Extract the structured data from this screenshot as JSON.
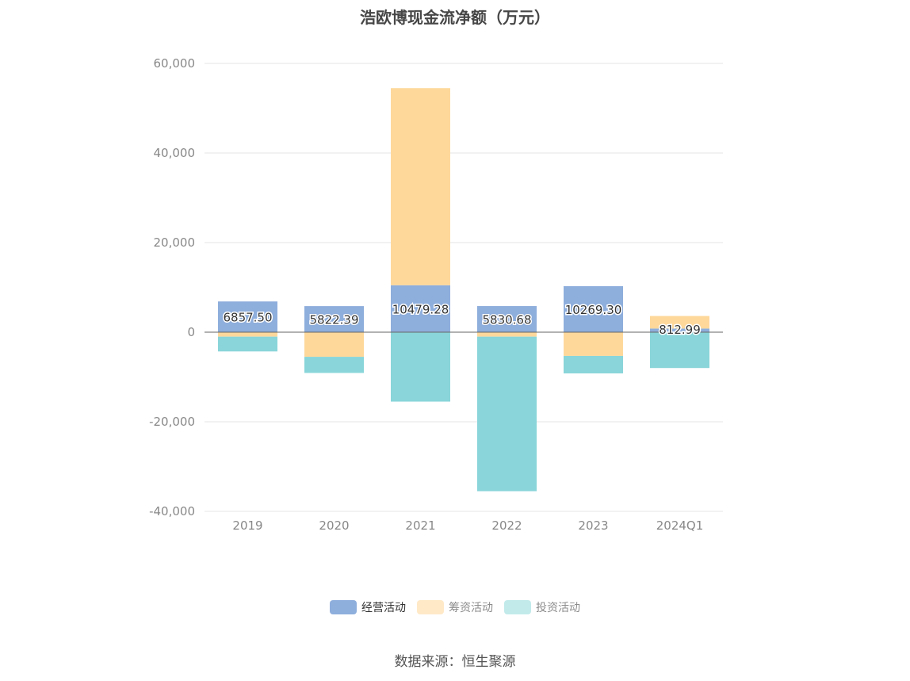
{
  "title": "浩欧博现金流净额（万元）",
  "source": "数据来源：恒生聚源",
  "colors": {
    "operating": "#8eaedc",
    "financing": "#fed89b",
    "investing": "#89d5d9",
    "axis_line": "#666666",
    "grid": "#e6e6e6",
    "tick": "#888888"
  },
  "legend": [
    {
      "label": "经营活动",
      "swatch": "#8eaedc",
      "state": "active"
    },
    {
      "label": "筹资活动",
      "swatch": "#ffe9c7",
      "state": "inactive"
    },
    {
      "label": "投资活动",
      "swatch": "#c2eaeb",
      "state": "inactive"
    }
  ],
  "chart_data": {
    "type": "bar",
    "stacked": true,
    "title": "浩欧博现金流净额（万元）",
    "categories": [
      "2019",
      "2020",
      "2021",
      "2022",
      "2023",
      "2024Q1"
    ],
    "series": [
      {
        "name": "经营活动",
        "values": [
          6857.5,
          5822.39,
          10479.28,
          5830.68,
          10269.3,
          812.99
        ]
      },
      {
        "name": "筹资活动",
        "values": [
          -1000,
          -5500,
          44000,
          -1000,
          -5300,
          2800
        ]
      },
      {
        "name": "投资活动",
        "values": [
          -3300,
          -3600,
          -15500,
          -34500,
          -3900,
          -8000
        ]
      }
    ],
    "data_labels": [
      "6857.50",
      "5822.39",
      "10479.28",
      "5830.68",
      "10269.30",
      "812.99"
    ],
    "yticks": [
      60000,
      40000,
      20000,
      0,
      -20000,
      -40000
    ],
    "ytick_labels": [
      "60,000",
      "40,000",
      "20,000",
      "0",
      "-20,000",
      "-40,000"
    ],
    "ylim": [
      -40000,
      60000
    ],
    "grid": true,
    "legend_position": "bottom"
  }
}
